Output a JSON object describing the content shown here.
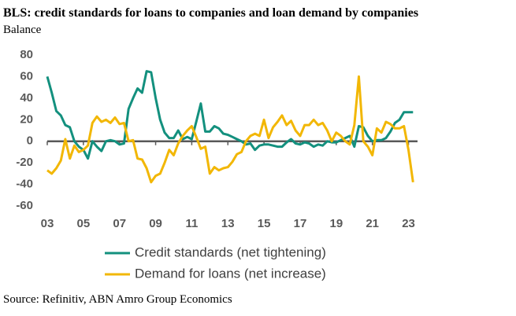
{
  "chart_data": {
    "type": "line",
    "title": "BLS: credit standards for loans to companies and loan demand by companies",
    "subtitle": "Balance",
    "source": "Source: Refinitiv, ABN Amro Group Economics",
    "x": [
      2003,
      2003.25,
      2003.5,
      2003.75,
      2004,
      2004.25,
      2004.5,
      2004.75,
      2005,
      2005.25,
      2005.5,
      2005.75,
      2006,
      2006.25,
      2006.5,
      2006.75,
      2007,
      2007.25,
      2007.5,
      2007.75,
      2008,
      2008.25,
      2008.5,
      2008.75,
      2009,
      2009.25,
      2009.5,
      2009.75,
      2010,
      2010.25,
      2010.5,
      2010.75,
      2011,
      2011.25,
      2011.5,
      2011.75,
      2012,
      2012.25,
      2012.5,
      2012.75,
      2013,
      2013.25,
      2013.5,
      2013.75,
      2014,
      2014.25,
      2014.5,
      2014.75,
      2015,
      2015.25,
      2015.5,
      2015.75,
      2016,
      2016.25,
      2016.5,
      2016.75,
      2017,
      2017.25,
      2017.5,
      2017.75,
      2018,
      2018.25,
      2018.5,
      2018.75,
      2019,
      2019.25,
      2019.5,
      2019.75,
      2020,
      2020.25,
      2020.5,
      2020.75,
      2021,
      2021.25,
      2021.5,
      2021.75,
      2022,
      2022.25,
      2022.5,
      2022.75,
      2023,
      2023.25
    ],
    "series": [
      {
        "name": "Credit standards (net tightening)",
        "color": "#13907e",
        "values": [
          60,
          45,
          28,
          24,
          15,
          13,
          0,
          -5,
          -8,
          -16,
          0,
          -5,
          -9,
          0,
          1,
          0,
          -3,
          -2,
          30,
          40,
          49,
          45,
          65,
          64,
          40,
          20,
          8,
          3,
          3,
          10,
          2,
          4,
          2,
          18,
          35,
          9,
          9,
          14,
          12,
          7,
          6,
          4,
          2,
          0,
          -3,
          -2,
          -8,
          -4,
          -3,
          -3,
          -4,
          -5,
          -5,
          -1,
          2,
          -2,
          -3,
          -1,
          -2,
          -5,
          -3,
          -4,
          0,
          -1,
          -1,
          1,
          3,
          5,
          -5,
          14,
          13,
          5,
          0,
          1,
          1,
          3,
          9,
          17,
          20,
          27,
          27,
          27
        ]
      },
      {
        "name": "Demand for loans (net increase)",
        "color": "#f2b705",
        "values": [
          -27,
          -30,
          -25,
          -18,
          2,
          -16,
          -4,
          -10,
          -8,
          -4,
          17,
          23,
          18,
          20,
          17,
          22,
          16,
          17,
          0,
          1,
          -16,
          -17,
          -25,
          -38,
          -32,
          -30,
          -20,
          -8,
          -13,
          -2,
          5,
          10,
          14,
          4,
          -7,
          -5,
          -30,
          -24,
          -27,
          -25,
          -24,
          -19,
          -12,
          -10,
          0,
          5,
          7,
          5,
          20,
          3,
          13,
          18,
          24,
          15,
          19,
          10,
          5,
          15,
          15,
          20,
          15,
          17,
          10,
          0,
          8,
          5,
          0,
          -3,
          15,
          60,
          0,
          -5,
          -13,
          12,
          8,
          18,
          16,
          12,
          12,
          14,
          -8,
          -38
        ]
      }
    ],
    "xlim": [
      2003,
      2023.5
    ],
    "xticks": [
      {
        "value": 2003,
        "label": "03"
      },
      {
        "value": 2005,
        "label": "05"
      },
      {
        "value": 2007,
        "label": "07"
      },
      {
        "value": 2009,
        "label": "09"
      },
      {
        "value": 2011,
        "label": "11"
      },
      {
        "value": 2013,
        "label": "13"
      },
      {
        "value": 2015,
        "label": "15"
      },
      {
        "value": 2017,
        "label": "17"
      },
      {
        "value": 2019,
        "label": "19"
      },
      {
        "value": 2021,
        "label": "21"
      },
      {
        "value": 2023,
        "label": "23"
      }
    ],
    "ylim": [
      -60,
      80
    ],
    "yticks": [
      -60,
      -40,
      -20,
      0,
      20,
      40,
      60,
      80
    ]
  }
}
